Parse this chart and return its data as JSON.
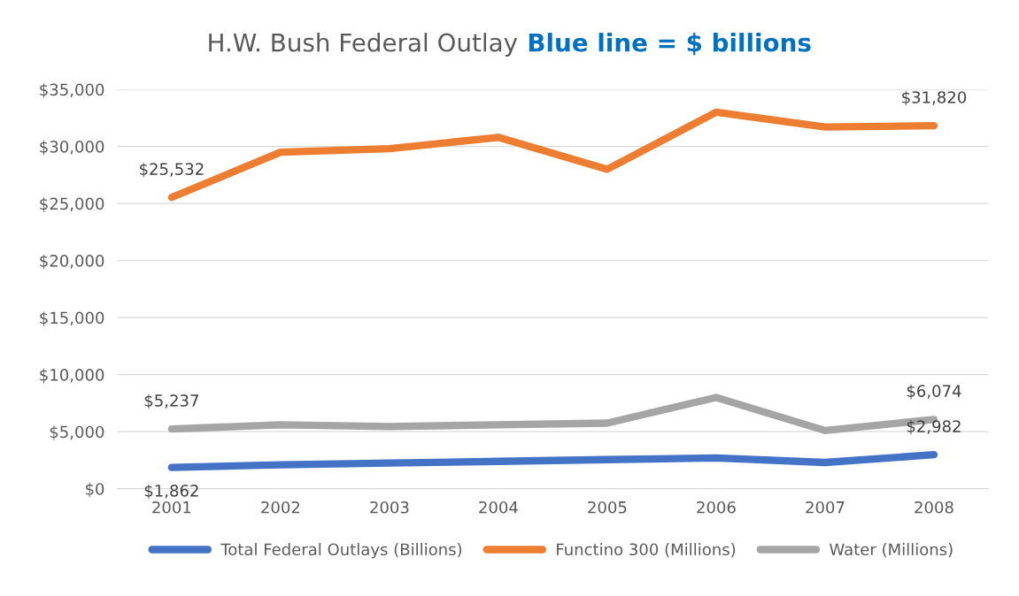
{
  "chart_data": {
    "type": "line",
    "title": "H.W. Bush Federal Outlay",
    "subtitle": "Blue line = $ billions",
    "categories": [
      "2001",
      "2002",
      "2003",
      "2004",
      "2005",
      "2006",
      "2007",
      "2008"
    ],
    "series": [
      {
        "name": "Total Federal Outlays (Billions)",
        "color": "#4472c4",
        "values": [
          1862,
          2100,
          2250,
          2400,
          2550,
          2700,
          2300,
          2982
        ],
        "value_labels": [
          "$1,862",
          null,
          null,
          null,
          null,
          null,
          null,
          "$2,982"
        ]
      },
      {
        "name": "Functino 300 (Millions)",
        "color": "#ed7d31",
        "values": [
          25532,
          29500,
          29800,
          30800,
          28000,
          33000,
          31700,
          31820
        ],
        "value_labels": [
          "$25,532",
          null,
          null,
          null,
          null,
          null,
          null,
          "$31,820"
        ]
      },
      {
        "name": "Water (Millions)",
        "color": "#a5a5a5",
        "values": [
          5237,
          5600,
          5450,
          5600,
          5750,
          8000,
          5100,
          6074
        ],
        "value_labels": [
          "$5,237",
          null,
          null,
          null,
          null,
          null,
          null,
          "$6,074"
        ]
      }
    ],
    "ylim": [
      0,
      35000
    ],
    "yticks": [
      {
        "value": 0,
        "label": "$0"
      },
      {
        "value": 5000,
        "label": "$5,000"
      },
      {
        "value": 10000,
        "label": "$10,000"
      },
      {
        "value": 15000,
        "label": "$15,000"
      },
      {
        "value": 20000,
        "label": "$20,000"
      },
      {
        "value": 25000,
        "label": "$25,000"
      },
      {
        "value": 30000,
        "label": "$30,000"
      },
      {
        "value": 35000,
        "label": "$35,000"
      }
    ],
    "grid": "y",
    "legend": "bottom",
    "marker": "none",
    "line_style": "solid"
  }
}
